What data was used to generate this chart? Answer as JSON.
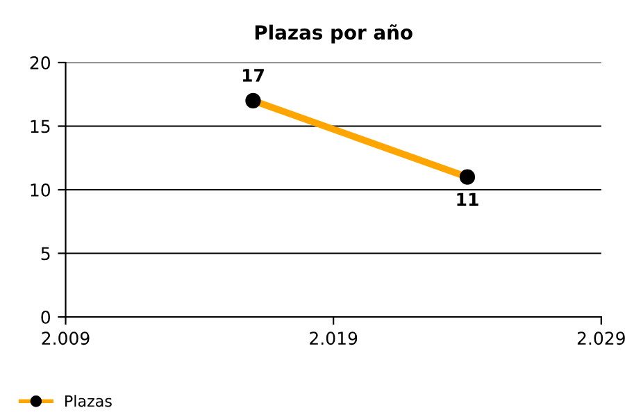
{
  "chart_data": {
    "type": "line",
    "title": "Plazas por año",
    "x": [
      2016,
      2024
    ],
    "series": [
      {
        "name": "Plazas",
        "color": "#ffa500",
        "values": [
          17,
          11
        ]
      }
    ],
    "xlim": [
      2009,
      2029
    ],
    "xticks": [
      {
        "value": 2009,
        "label": "2.009"
      },
      {
        "value": 2019,
        "label": "2.019"
      },
      {
        "value": 2029,
        "label": "2.029"
      }
    ],
    "ylim": [
      0,
      20
    ],
    "yticks": [
      0,
      5,
      10,
      15,
      20
    ],
    "grid": "y",
    "legend": "bottom left",
    "marker": "circle",
    "line_style": "solid",
    "data_labels": true
  }
}
